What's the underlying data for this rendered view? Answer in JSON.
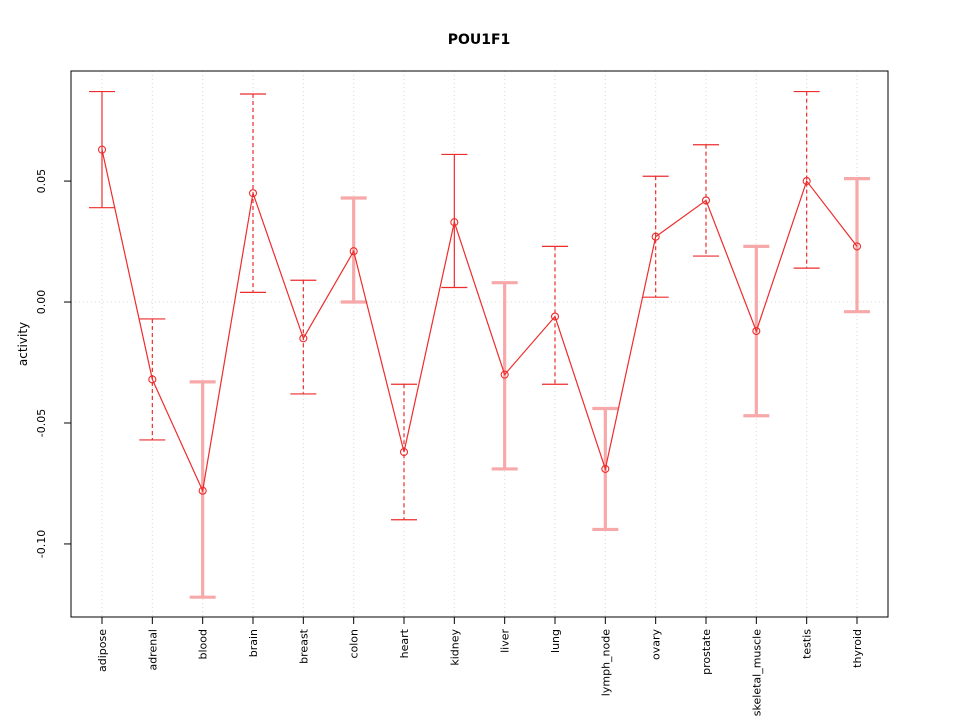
{
  "chart_data": {
    "type": "line",
    "title": "POU1F1",
    "xlabel": "",
    "ylabel": "activity",
    "categories": [
      "adipose",
      "adrenal",
      "blood",
      "brain",
      "breast",
      "colon",
      "heart",
      "kidney",
      "liver",
      "lung",
      "lymph_node",
      "ovary",
      "prostate",
      "skeletal_muscle",
      "testis",
      "thyroid"
    ],
    "series": [
      {
        "name": "activity",
        "values": [
          0.063,
          -0.032,
          -0.078,
          0.045,
          -0.015,
          0.021,
          -0.062,
          0.033,
          -0.03,
          -0.006,
          -0.069,
          0.027,
          0.042,
          -0.012,
          0.05,
          0.023
        ],
        "ci_low": [
          0.039,
          -0.057,
          -0.122,
          0.004,
          -0.038,
          0.0,
          -0.09,
          0.006,
          -0.069,
          -0.034,
          -0.094,
          0.002,
          0.019,
          -0.047,
          0.014,
          -0.004
        ],
        "ci_high": [
          0.087,
          -0.007,
          -0.033,
          0.086,
          0.009,
          0.043,
          -0.034,
          0.061,
          0.008,
          0.023,
          -0.044,
          0.052,
          0.065,
          0.023,
          0.087,
          0.051
        ],
        "ci_style": [
          "solid_red",
          "dashed_red",
          "solid_pink",
          "dashed_red",
          "dashed_red",
          "solid_pink",
          "dashed_red",
          "solid_red",
          "solid_pink",
          "dashed_red",
          "solid_pink",
          "dashed_red",
          "dashed_red",
          "solid_pink",
          "dashed_red",
          "solid_pink"
        ]
      }
    ],
    "marker": "open-circle",
    "ylim": [
      -0.1302,
      0.0955
    ],
    "yticks": [
      0.05,
      0.0,
      -0.05,
      -0.1
    ],
    "ytick_labels": [
      "0.05",
      "0.00",
      "-0.05",
      "-0.10"
    ],
    "grid": {
      "vertical": "per-category",
      "horizontal_at": 0.0,
      "style": "dotted"
    },
    "legend": "none",
    "colors": {
      "line": "#ee2c2c",
      "marker": "#ee2c2c",
      "ci_red": "#ee2c2c",
      "ci_pink": "#f7a8a8",
      "grid": "#d9d9d9",
      "axis": "#000000",
      "background": "#ffffff"
    }
  }
}
